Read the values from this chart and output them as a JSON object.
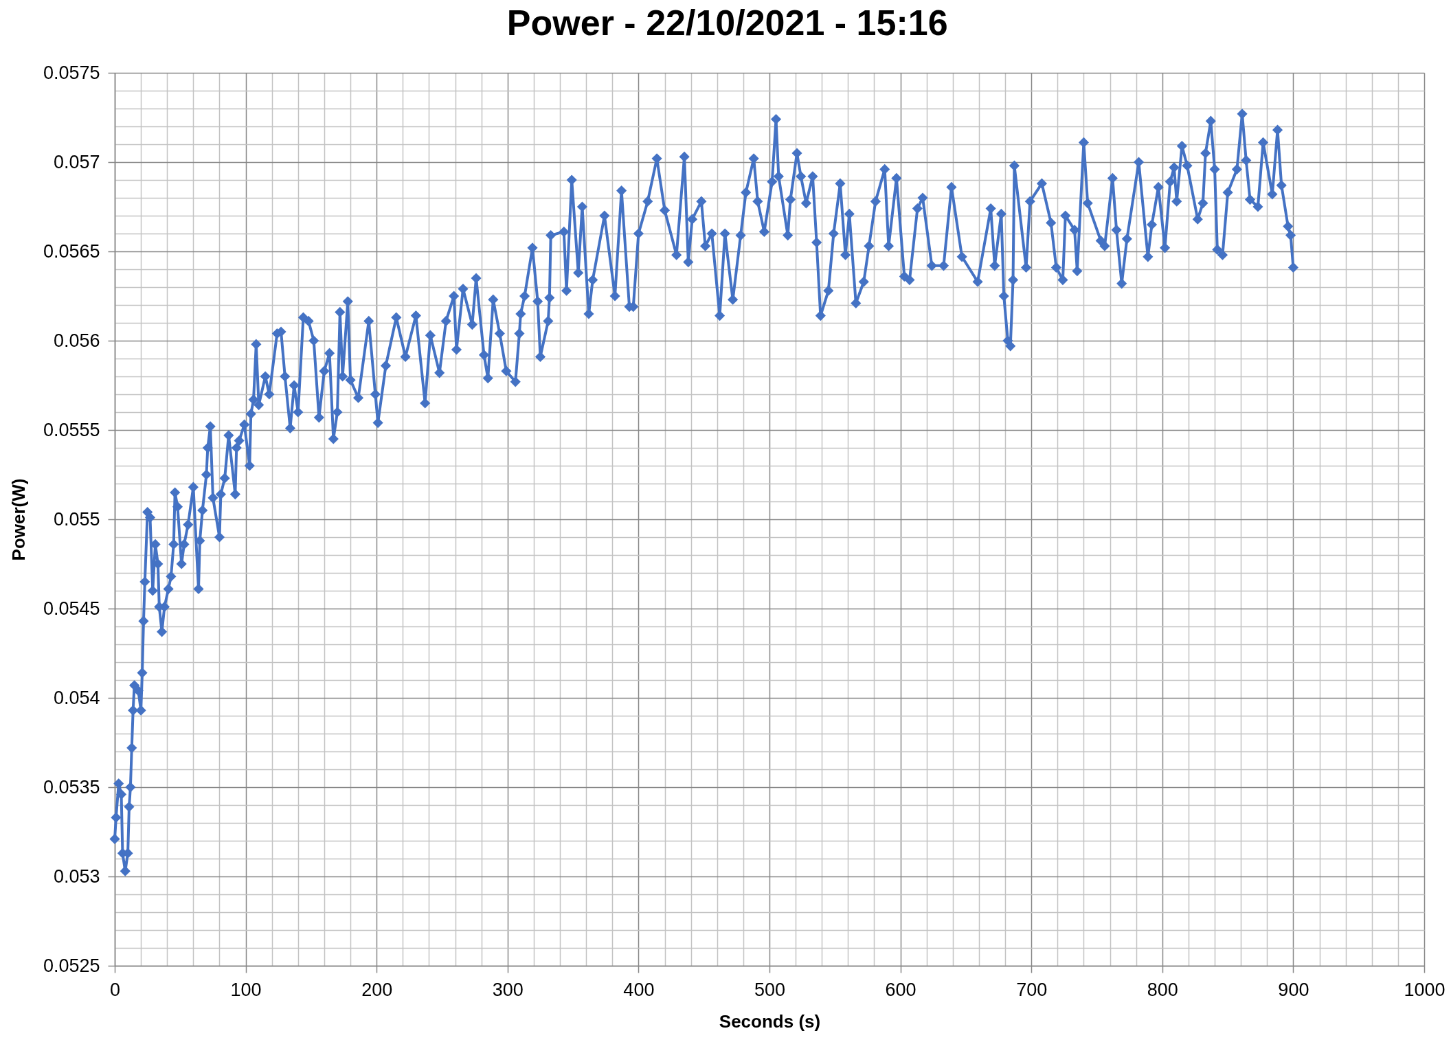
{
  "chart_data": {
    "type": "line",
    "title": "Power - 22/10/2021 - 15:16",
    "xlabel": "Seconds (s)",
    "ylabel": "Power(W)",
    "x": [
      0,
      1,
      3,
      5,
      6,
      8,
      10,
      11,
      12,
      13,
      14,
      15,
      18,
      20,
      21,
      22,
      23,
      25,
      27,
      29,
      31,
      33,
      34,
      36,
      38,
      41,
      43,
      45,
      46,
      48,
      51,
      53,
      56,
      60,
      64,
      65,
      67,
      70,
      71,
      73,
      75,
      80,
      81,
      84,
      87,
      92,
      93,
      95,
      99,
      103,
      104,
      106,
      108,
      110,
      115,
      118,
      124,
      127,
      130,
      134,
      137,
      140,
      144,
      148,
      152,
      156,
      160,
      164,
      167,
      170,
      172,
      174,
      178,
      180,
      186,
      194,
      199,
      201,
      207,
      215,
      222,
      230,
      237,
      241,
      248,
      253,
      259,
      261,
      266,
      273,
      276,
      282,
      285,
      289,
      294,
      299,
      306,
      309,
      310,
      313,
      319,
      323,
      325,
      331,
      332,
      333,
      343,
      345,
      349,
      354,
      357,
      362,
      365,
      374,
      382,
      387,
      393,
      396,
      400,
      407,
      414,
      420,
      429,
      435,
      438,
      441,
      448,
      451,
      456,
      462,
      466,
      472,
      478,
      482,
      488,
      491,
      496,
      502,
      505,
      507,
      514,
      516,
      521,
      524,
      528,
      533,
      536,
      539,
      545,
      549,
      554,
      558,
      561,
      566,
      572,
      576,
      581,
      588,
      591,
      597,
      603,
      607,
      613,
      617,
      624,
      633,
      639,
      647,
      659,
      669,
      672,
      677,
      679,
      682,
      684,
      686,
      687,
      696,
      699,
      708,
      715,
      719,
      724,
      726,
      733,
      735,
      740,
      743,
      753,
      756,
      762,
      765,
      769,
      773,
      782,
      789,
      792,
      797,
      802,
      806,
      809,
      811,
      815,
      819,
      827,
      831,
      833,
      837,
      840,
      842,
      846,
      850,
      857,
      861,
      864,
      867,
      873,
      877,
      884,
      888,
      891,
      896,
      898,
      900
    ],
    "series": [
      {
        "color": "#4472c4",
        "values": [
          0.05321,
          0.05333,
          0.05352,
          0.05346,
          0.05313,
          0.05303,
          0.05313,
          0.05339,
          0.0535,
          0.05372,
          0.05393,
          0.05407,
          0.05404,
          0.05393,
          0.05414,
          0.05443,
          0.05465,
          0.05504,
          0.05501,
          0.0546,
          0.05486,
          0.05475,
          0.05451,
          0.05437,
          0.05451,
          0.05461,
          0.05468,
          0.05486,
          0.05515,
          0.05507,
          0.05475,
          0.05486,
          0.05497,
          0.05518,
          0.05461,
          0.05488,
          0.05505,
          0.05525,
          0.0554,
          0.05552,
          0.05512,
          0.0549,
          0.05514,
          0.05523,
          0.05547,
          0.05514,
          0.0554,
          0.05544,
          0.05553,
          0.0553,
          0.05559,
          0.05567,
          0.05598,
          0.05564,
          0.0558,
          0.0557,
          0.05604,
          0.05605,
          0.0558,
          0.05551,
          0.05575,
          0.0556,
          0.05613,
          0.05611,
          0.056,
          0.05557,
          0.05583,
          0.05593,
          0.05545,
          0.0556,
          0.05616,
          0.0558,
          0.05622,
          0.05578,
          0.05568,
          0.05611,
          0.0557,
          0.05554,
          0.05586,
          0.05613,
          0.05591,
          0.05614,
          0.05565,
          0.05603,
          0.05582,
          0.05611,
          0.05625,
          0.05595,
          0.05629,
          0.05609,
          0.05635,
          0.05592,
          0.05579,
          0.05623,
          0.05604,
          0.05583,
          0.05577,
          0.05604,
          0.05615,
          0.05625,
          0.05652,
          0.05622,
          0.05591,
          0.05611,
          0.05624,
          0.05659,
          0.05661,
          0.05628,
          0.0569,
          0.05638,
          0.05675,
          0.05615,
          0.05634,
          0.0567,
          0.05625,
          0.05684,
          0.05619,
          0.05619,
          0.0566,
          0.05678,
          0.05702,
          0.05673,
          0.05648,
          0.05703,
          0.05644,
          0.05668,
          0.05678,
          0.05653,
          0.0566,
          0.05614,
          0.0566,
          0.05623,
          0.05659,
          0.05683,
          0.05702,
          0.05678,
          0.05661,
          0.05689,
          0.05724,
          0.05692,
          0.05659,
          0.05679,
          0.05705,
          0.05692,
          0.05677,
          0.05692,
          0.05655,
          0.05614,
          0.05628,
          0.0566,
          0.05688,
          0.05648,
          0.05671,
          0.05621,
          0.05633,
          0.05653,
          0.05678,
          0.05696,
          0.05653,
          0.05691,
          0.05636,
          0.05634,
          0.05674,
          0.0568,
          0.05642,
          0.05642,
          0.05686,
          0.05647,
          0.05633,
          0.05674,
          0.05642,
          0.05671,
          0.05625,
          0.056,
          0.05597,
          0.05634,
          0.05698,
          0.05641,
          0.05678,
          0.05688,
          0.05666,
          0.05641,
          0.05634,
          0.0567,
          0.05662,
          0.05639,
          0.05711,
          0.05677,
          0.05656,
          0.05653,
          0.05691,
          0.05662,
          0.05632,
          0.05657,
          0.057,
          0.05647,
          0.05665,
          0.05686,
          0.05652,
          0.05689,
          0.05697,
          0.05678,
          0.05709,
          0.05698,
          0.05668,
          0.05677,
          0.05705,
          0.05723,
          0.05696,
          0.05651,
          0.05648,
          0.05683,
          0.05696,
          0.05727,
          0.05701,
          0.05679,
          0.05675,
          0.05711,
          0.05682,
          0.05718,
          0.05687,
          0.05664,
          0.05659,
          0.05641
        ]
      }
    ],
    "xlim": [
      0,
      1000
    ],
    "ylim": [
      0.0525,
      0.0575
    ],
    "xticks": [
      0,
      100,
      200,
      300,
      400,
      500,
      600,
      700,
      800,
      900,
      1000
    ],
    "yticks": [
      0.0525,
      0.053,
      0.0535,
      0.054,
      0.0545,
      0.055,
      0.0555,
      0.056,
      0.0565,
      0.057,
      0.0575
    ],
    "grid": true,
    "marker": "diamond",
    "line_style": "solid"
  }
}
